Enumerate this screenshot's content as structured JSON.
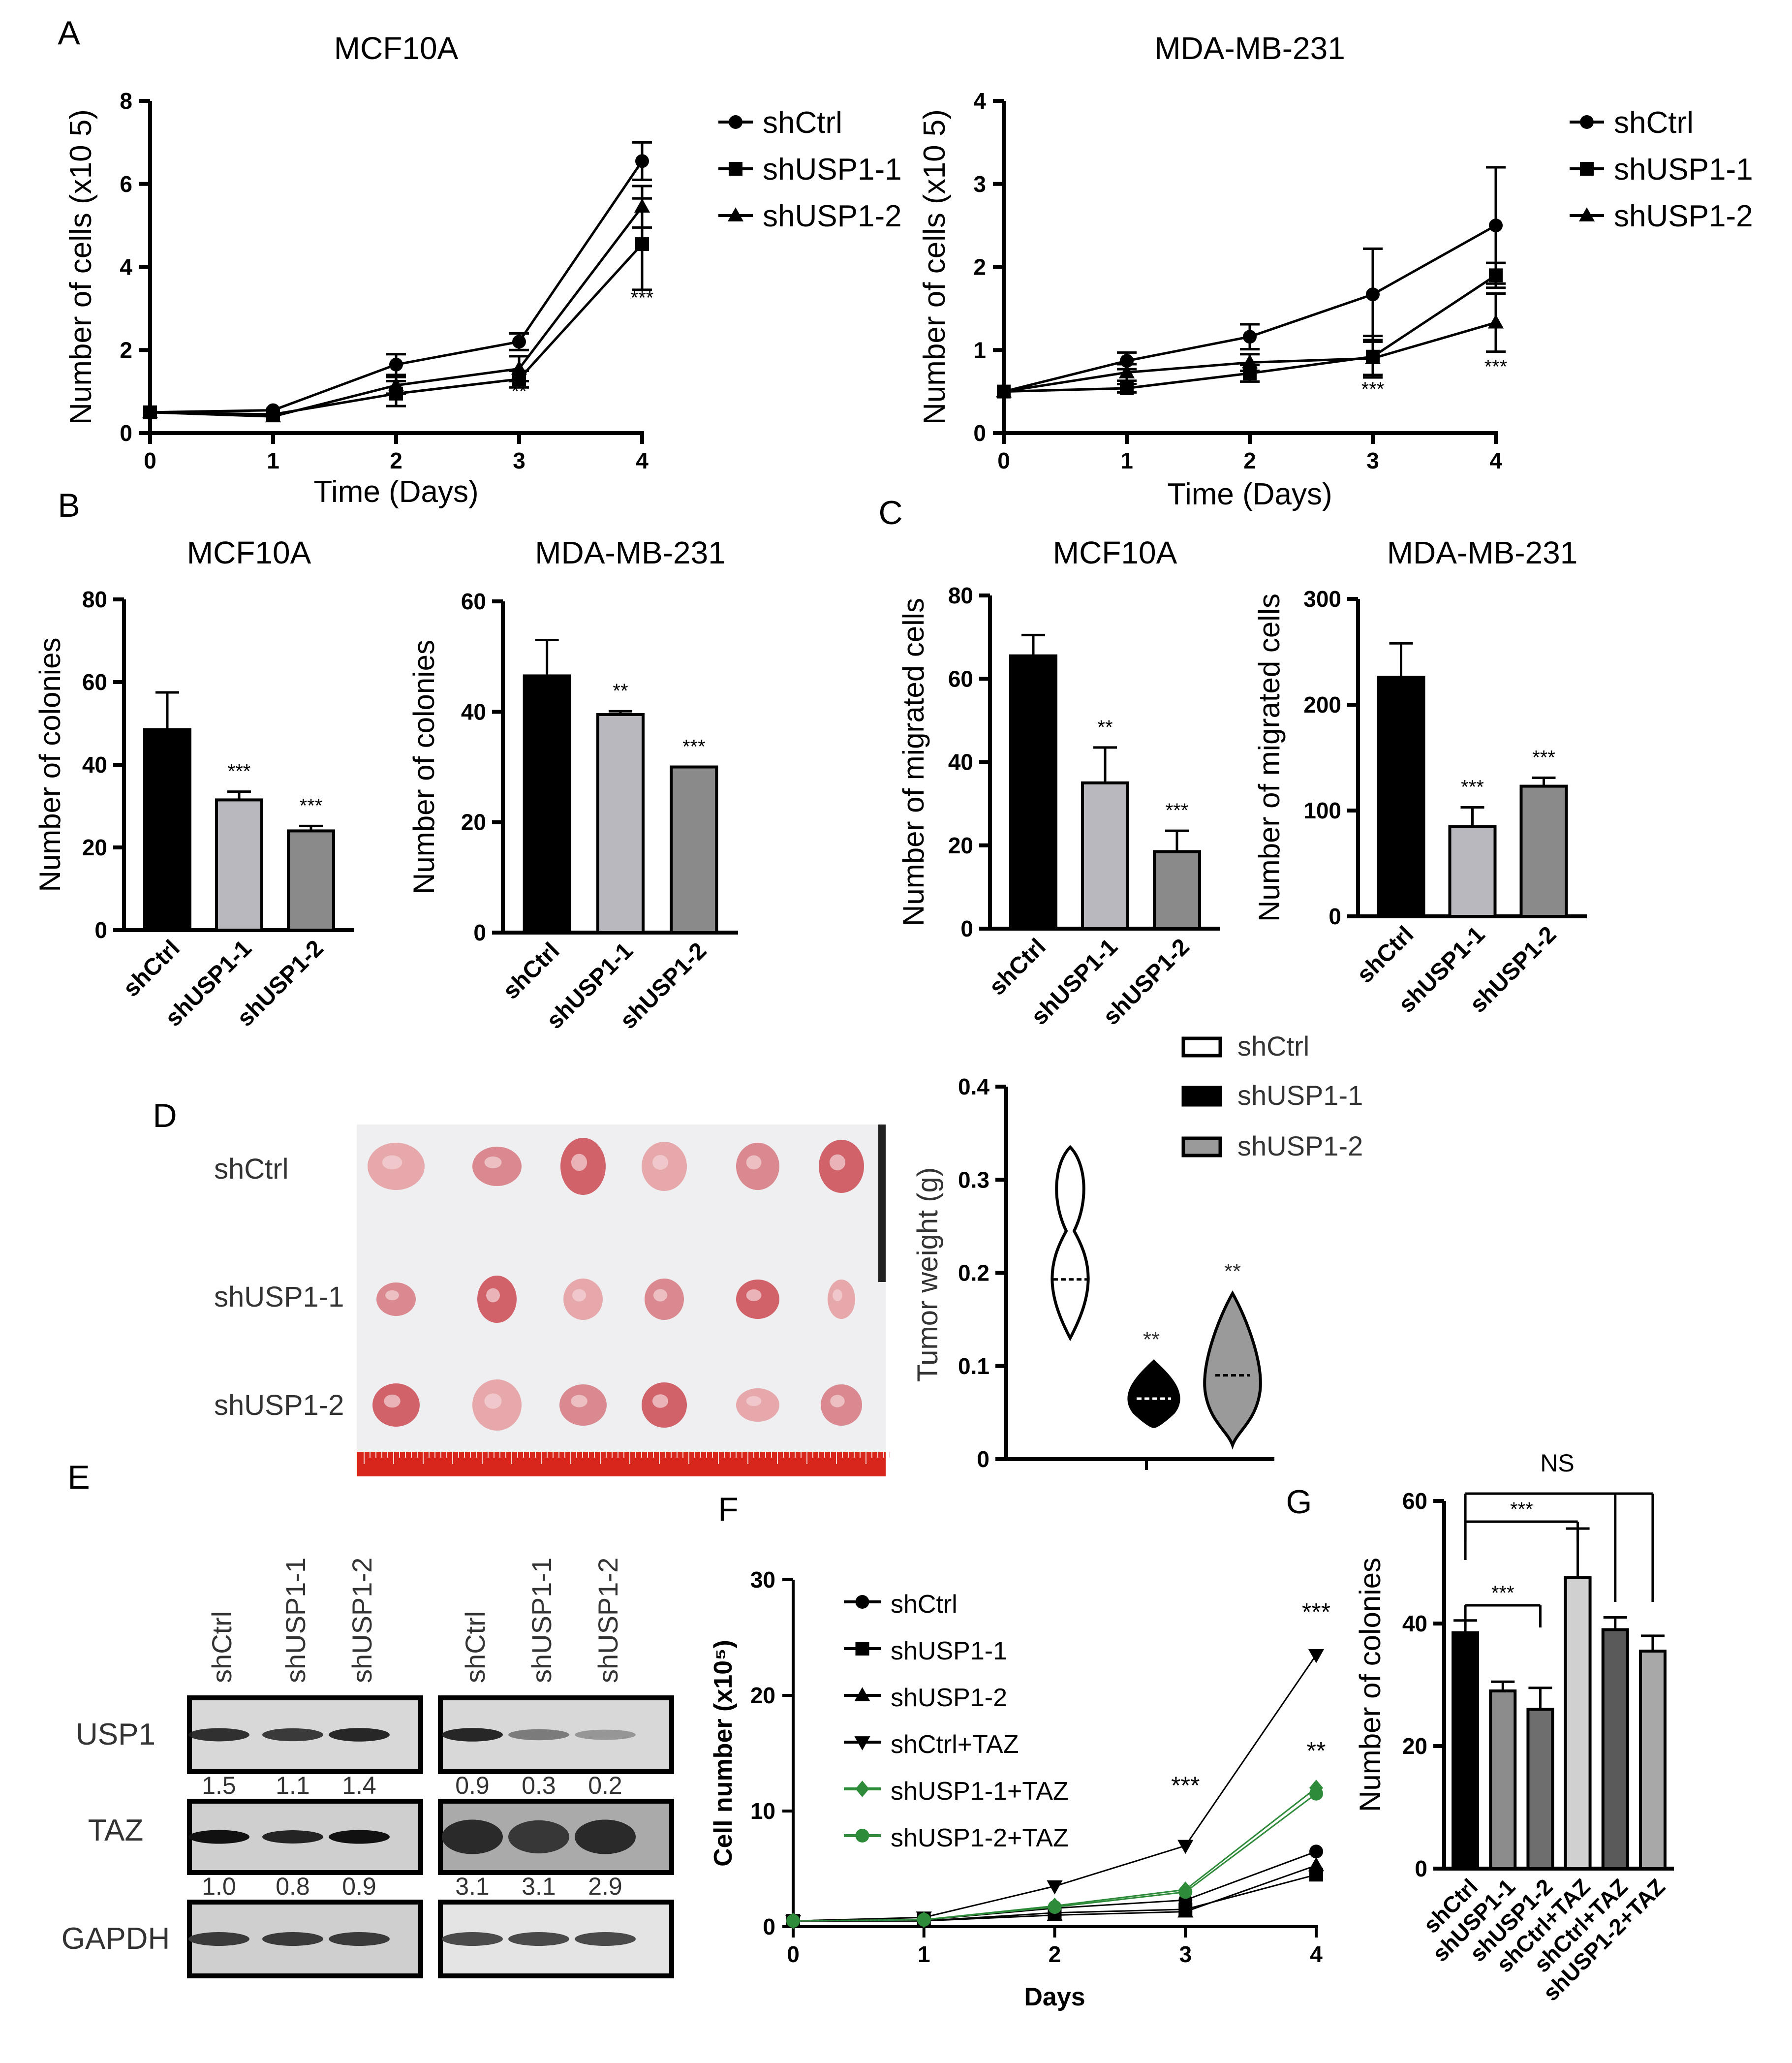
{
  "panel_labels": [
    "A",
    "B",
    "C",
    "D",
    "E",
    "F",
    "G"
  ],
  "groups": [
    "shCtrl",
    "shUSP1-1",
    "shUSP1-2"
  ],
  "chart_data": [
    {
      "id": "A1",
      "type": "line",
      "title": "MCF10A",
      "xlabel": "Time (Days)",
      "ylabel": "Number of cells (x10 5)",
      "x": [
        0,
        1,
        2,
        3,
        4
      ],
      "xlim": [
        0,
        4
      ],
      "ylim": [
        0,
        8
      ],
      "yticks": [
        0,
        2,
        4,
        6,
        8
      ],
      "series": [
        {
          "name": "shCtrl",
          "marker": "circle",
          "values": [
            0.5,
            0.55,
            1.65,
            2.2,
            6.55
          ],
          "err": [
            0,
            0,
            0.25,
            0.2,
            0.45
          ]
        },
        {
          "name": "shUSP1-1",
          "marker": "square",
          "values": [
            0.5,
            0.45,
            0.95,
            1.3,
            4.55
          ],
          "err": [
            0,
            0,
            0.3,
            0.2,
            1.1
          ]
        },
        {
          "name": "shUSP1-2",
          "marker": "triangle",
          "values": [
            0.5,
            0.4,
            1.15,
            1.55,
            5.45
          ],
          "err": [
            0,
            0,
            0.2,
            0.3,
            0.5
          ]
        }
      ],
      "annotations": [
        {
          "x": 3,
          "y": 0.85,
          "text": "**"
        },
        {
          "x": 4,
          "y": 3.1,
          "text": "***"
        }
      ]
    },
    {
      "id": "A2",
      "type": "line",
      "title": "MDA-MB-231",
      "xlabel": "Time (Days)",
      "ylabel": "Number of cells (x10 5)",
      "x": [
        0,
        1,
        2,
        3,
        4
      ],
      "xlim": [
        0,
        4
      ],
      "ylim": [
        0,
        4
      ],
      "yticks": [
        0,
        1,
        2,
        3,
        4
      ],
      "series": [
        {
          "name": "shCtrl",
          "marker": "circle",
          "values": [
            0.5,
            0.87,
            1.16,
            1.67,
            2.5
          ],
          "err": [
            0,
            0.1,
            0.15,
            0.55,
            0.7
          ]
        },
        {
          "name": "shUSP1-1",
          "marker": "square",
          "values": [
            0.5,
            0.54,
            0.72,
            0.92,
            1.9
          ],
          "err": [
            0,
            0.05,
            0.1,
            0.25,
            0.15
          ]
        },
        {
          "name": "shUSP1-2",
          "marker": "triangle",
          "values": [
            0.5,
            0.73,
            0.85,
            0.9,
            1.33
          ],
          "err": [
            0,
            0.1,
            0.1,
            0.2,
            0.35
          ]
        }
      ],
      "annotations": [
        {
          "x": 3,
          "y": 0.45,
          "text": "***"
        },
        {
          "x": 4,
          "y": 0.72,
          "text": "***"
        }
      ]
    },
    {
      "id": "B1",
      "type": "bar",
      "title": "MCF10A",
      "ylabel": "Number of colonies",
      "categories": [
        "shCtrl",
        "shUSP1-1",
        "shUSP1-2"
      ],
      "values": [
        48.5,
        31.5,
        24
      ],
      "err": [
        9,
        2,
        1.2
      ],
      "ylim": [
        0,
        80
      ],
      "yticks": [
        0,
        20,
        40,
        60,
        80
      ],
      "sig": [
        "",
        "***",
        "***"
      ],
      "colors": [
        "#000000",
        "#b8b8be",
        "#8a8a8a"
      ]
    },
    {
      "id": "B2",
      "type": "bar",
      "title": "MDA-MB-231",
      "ylabel": "Number of colonies",
      "categories": [
        "shCtrl",
        "shUSP1-1",
        "shUSP1-2"
      ],
      "values": [
        46.5,
        39.5,
        30
      ],
      "err": [
        6.5,
        0.6,
        0
      ],
      "ylim": [
        0,
        60
      ],
      "yticks": [
        0,
        20,
        40,
        60
      ],
      "sig": [
        "",
        "**",
        "***"
      ],
      "colors": [
        "#000000",
        "#b8b8be",
        "#8a8a8a"
      ]
    },
    {
      "id": "C1",
      "type": "bar",
      "title": "MCF10A",
      "ylabel": "Number of migrated cells",
      "categories": [
        "shCtrl",
        "shUSP1-1",
        "shUSP1-2"
      ],
      "values": [
        65.5,
        35,
        18.5
      ],
      "err": [
        5,
        8.5,
        5
      ],
      "ylim": [
        0,
        80
      ],
      "yticks": [
        0,
        20,
        40,
        60,
        80
      ],
      "sig": [
        "",
        "**",
        "***"
      ],
      "colors": [
        "#000000",
        "#b8b8be",
        "#8a8a8a"
      ]
    },
    {
      "id": "C2",
      "type": "bar",
      "title": "MDA-MB-231",
      "ylabel": "Number of migrated cells",
      "categories": [
        "shCtrl",
        "shUSP1-1",
        "shUSP1-2"
      ],
      "values": [
        226,
        85,
        123
      ],
      "err": [
        32,
        18,
        8
      ],
      "ylim": [
        0,
        300
      ],
      "yticks": [
        0,
        100,
        200,
        300
      ],
      "sig": [
        "",
        "***",
        "***"
      ],
      "colors": [
        "#000000",
        "#b8b8be",
        "#8a8a8a"
      ]
    },
    {
      "id": "D",
      "type": "violin",
      "ylabel": "Tumor weight (g)",
      "ylim": [
        0,
        0.4
      ],
      "yticks": [
        0.0,
        0.1,
        0.2,
        0.3,
        0.4
      ],
      "categories": [
        "shCtrl",
        "shUSP1-1",
        "shUSP1-2"
      ],
      "median": [
        0.193,
        0.065,
        0.09
      ],
      "min": [
        0.13,
        0.035,
        0.015
      ],
      "max": [
        0.335,
        0.105,
        0.178
      ],
      "sig": [
        "",
        "**",
        "**"
      ],
      "legend": [
        "shCtrl",
        "shUSP1-1",
        "shUSP1-2"
      ]
    },
    {
      "id": "F",
      "type": "line",
      "xlabel": "Days",
      "ylabel": "Cell number (x10⁵)",
      "x": [
        0,
        1,
        2,
        3,
        4
      ],
      "xlim": [
        0,
        4
      ],
      "ylim": [
        0,
        30
      ],
      "yticks": [
        0,
        10,
        20,
        30
      ],
      "series": [
        {
          "name": "shCtrl",
          "marker": "circle",
          "color": "#000000",
          "values": [
            0.5,
            0.6,
            1.6,
            2.3,
            6.5
          ]
        },
        {
          "name": "shUSP1-1",
          "marker": "square",
          "color": "#000000",
          "values": [
            0.5,
            0.5,
            1.2,
            1.5,
            4.5
          ]
        },
        {
          "name": "shUSP1-2",
          "marker": "triangle",
          "color": "#000000",
          "values": [
            0.5,
            0.5,
            1.0,
            1.3,
            5.3
          ]
        },
        {
          "name": "shCtrl+TAZ",
          "marker": "triangle-down",
          "color": "#000000",
          "values": [
            0.5,
            0.8,
            3.5,
            7.0,
            23.5
          ]
        },
        {
          "name": "shUSP1-1+TAZ",
          "marker": "diamond",
          "color": "#2e8b3a",
          "values": [
            0.5,
            0.6,
            1.8,
            3.2,
            12.0
          ]
        },
        {
          "name": "shUSP1-2+TAZ",
          "marker": "circle",
          "color": "#2e8b3a",
          "values": [
            0.5,
            0.6,
            1.7,
            3.0,
            11.5
          ]
        }
      ],
      "annotations": [
        {
          "x": 3,
          "y": 11.5,
          "text": "***"
        },
        {
          "x": 4,
          "y": 26.5,
          "text": "***"
        },
        {
          "x": 4,
          "y": 14.5,
          "text": "**"
        }
      ]
    },
    {
      "id": "G",
      "type": "bar",
      "ylabel": "Number of colonies",
      "categories": [
        "shCtrl",
        "shUSP1-1",
        "shUSP1-2",
        "shCtrl+TAZ",
        "shCtrl+TAZ",
        "shUSP1-2+TAZ"
      ],
      "values": [
        38.5,
        29,
        26,
        47.5,
        39,
        35.5
      ],
      "err": [
        2,
        1.5,
        3.5,
        8,
        2,
        2.5
      ],
      "ylim": [
        0,
        60
      ],
      "yticks": [
        0,
        20,
        40,
        60
      ],
      "colors": [
        "#000000",
        "#8c8c8c",
        "#6e6e6e",
        "#d0d0d0",
        "#5a5a5a",
        "#a8a8a8"
      ],
      "brackets": [
        "***",
        "***",
        "NS"
      ]
    }
  ],
  "panel_d_photo": {
    "row_labels": [
      "shCtrl",
      "shUSP1-1",
      "shUSP1-2"
    ]
  },
  "panel_e_blot": {
    "lanes": [
      "shCtrl",
      "shUSP1-1",
      "shUSP1-2"
    ],
    "proteins": [
      "USP1",
      "TAZ",
      "GAPDH"
    ],
    "left": {
      "usp1_values": [
        "1.5",
        "1.1",
        "1.4"
      ],
      "taz_values": [
        "1.0",
        "0.8",
        "0.9"
      ]
    },
    "right": {
      "usp1_values": [
        "0.9",
        "0.3",
        "0.2"
      ],
      "taz_values": [
        "3.1",
        "3.1",
        "2.9"
      ]
    }
  }
}
